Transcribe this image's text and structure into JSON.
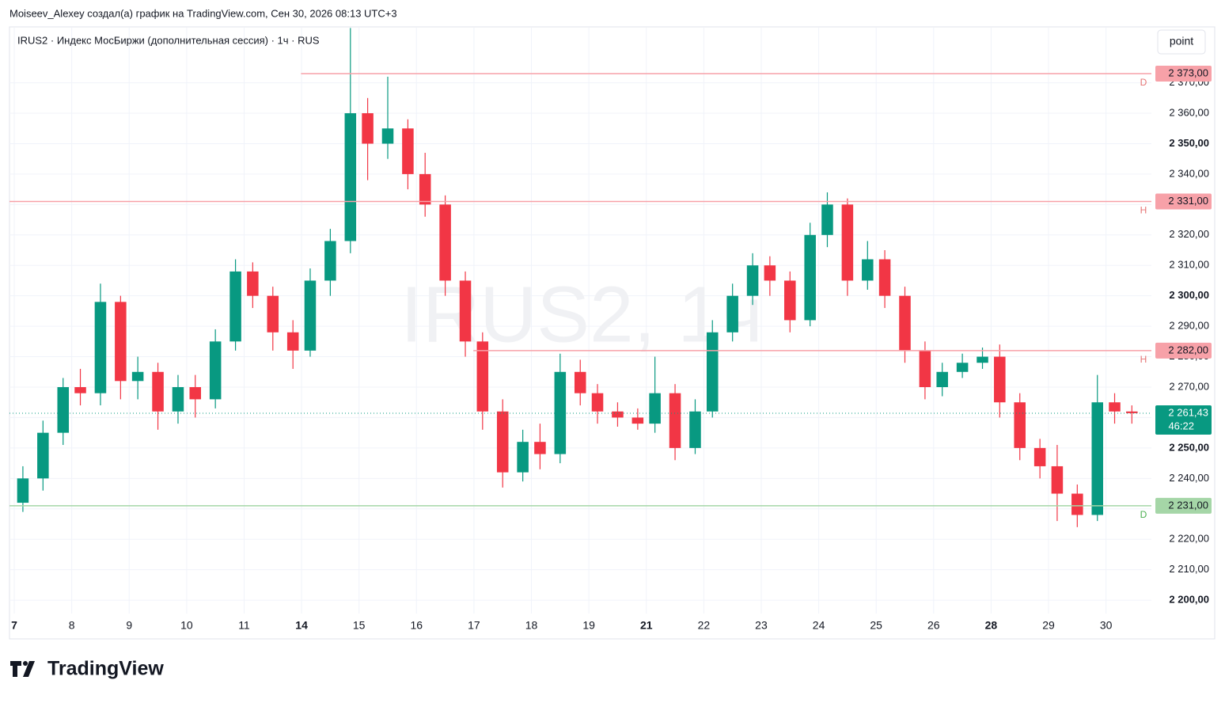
{
  "header": {
    "credit": "Moiseev_Alexey создал(а) график на TradingView.com, Сен 30, 2026 08:13 UTC+3",
    "button": "point",
    "logo": "TradingView"
  },
  "chart_data": {
    "type": "candlestick",
    "title": "IRUS2 · Индекс МосБиржи (дополнительная сессия) · 1ч · RUS",
    "watermark": "IRUS2, 1ч",
    "up_color": "#089981",
    "down_color": "#f23645",
    "x": [
      0.15,
      0.5,
      0.85,
      1.15,
      1.5,
      1.85,
      2.15,
      2.5,
      2.85,
      3.15,
      3.5,
      3.85,
      4.15,
      4.5,
      4.85,
      5.15,
      5.5,
      5.85,
      6.15,
      6.5,
      6.85,
      7.15,
      7.5,
      7.85,
      8.15,
      8.5,
      8.85,
      9.15,
      9.5,
      9.85,
      10.15,
      10.5,
      10.85,
      11.15,
      11.5,
      11.85,
      12.15,
      12.5,
      12.85,
      13.15,
      13.5,
      13.85,
      14.15,
      14.5,
      14.85,
      15.15,
      15.5,
      15.85,
      16.15,
      16.5,
      16.85,
      17.15,
      17.5,
      17.85,
      18.15,
      18.5,
      18.85,
      19.15,
      19.45
    ],
    "open": [
      2232,
      2240,
      2255,
      2270,
      2268,
      2298,
      2272,
      2275,
      2262,
      2270,
      2266,
      2285,
      2308,
      2300,
      2288,
      2282,
      2305,
      2318,
      2360,
      2350,
      2355,
      2340,
      2330,
      2305,
      2285,
      2262,
      2242,
      2252,
      2248,
      2275,
      2268,
      2262,
      2260,
      2258,
      2268,
      2250,
      2262,
      2288,
      2300,
      2310,
      2305,
      2292,
      2320,
      2330,
      2305,
      2312,
      2300,
      2282,
      2270,
      2275,
      2278,
      2280,
      2265,
      2250,
      2244,
      2235,
      2228,
      2265,
      2262
    ],
    "high": [
      2244,
      2259,
      2273,
      2276,
      2304,
      2300,
      2280,
      2278,
      2274,
      2274,
      2289,
      2312,
      2311,
      2303,
      2292,
      2309,
      2322,
      2388,
      2365,
      2372,
      2358,
      2347,
      2333,
      2308,
      2288,
      2266,
      2256,
      2258,
      2281,
      2279,
      2271,
      2265,
      2263,
      2280,
      2271,
      2266,
      2292,
      2304,
      2314,
      2313,
      2308,
      2324,
      2334,
      2332,
      2318,
      2315,
      2303,
      2285,
      2278,
      2281,
      2283,
      2284,
      2268,
      2253,
      2251,
      2238,
      2274,
      2268,
      2264
    ],
    "low": [
      2229,
      2236,
      2251,
      2264,
      2264,
      2266,
      2266,
      2256,
      2258,
      2260,
      2263,
      2282,
      2296,
      2282,
      2276,
      2280,
      2300,
      2314,
      2338,
      2345,
      2335,
      2326,
      2300,
      2280,
      2256,
      2237,
      2239,
      2243,
      2245,
      2264,
      2258,
      2257,
      2256,
      2255,
      2246,
      2248,
      2260,
      2285,
      2297,
      2300,
      2288,
      2290,
      2316,
      2300,
      2302,
      2296,
      2278,
      2266,
      2267,
      2273,
      2276,
      2260,
      2246,
      2240,
      2226,
      2224,
      2226,
      2258,
      2258
    ],
    "close": [
      2240,
      2255,
      2270,
      2268,
      2298,
      2272,
      2275,
      2262,
      2270,
      2266,
      2285,
      2308,
      2300,
      2288,
      2282,
      2305,
      2318,
      2360,
      2350,
      2355,
      2340,
      2330,
      2305,
      2285,
      2262,
      2242,
      2252,
      2248,
      2275,
      2268,
      2262,
      2260,
      2258,
      2268,
      2250,
      2262,
      2288,
      2300,
      2310,
      2305,
      2292,
      2320,
      2330,
      2305,
      2312,
      2300,
      2282,
      2270,
      2275,
      2278,
      2280,
      2265,
      2250,
      2244,
      2235,
      2228,
      2265,
      2262,
      2261.43
    ],
    "xlim": [
      -0.083,
      19.79
    ],
    "xticks": [
      {
        "value": 0,
        "label": "7",
        "bold": true
      },
      {
        "value": 1,
        "label": "8"
      },
      {
        "value": 2,
        "label": "9"
      },
      {
        "value": 3,
        "label": "10"
      },
      {
        "value": 4,
        "label": "11"
      },
      {
        "value": 5,
        "label": "14",
        "bold": true
      },
      {
        "value": 6,
        "label": "15"
      },
      {
        "value": 7,
        "label": "16"
      },
      {
        "value": 8,
        "label": "17"
      },
      {
        "value": 9,
        "label": "18"
      },
      {
        "value": 10,
        "label": "19"
      },
      {
        "value": 11,
        "label": "21",
        "bold": true
      },
      {
        "value": 12,
        "label": "22"
      },
      {
        "value": 13,
        "label": "23"
      },
      {
        "value": 14,
        "label": "24"
      },
      {
        "value": 15,
        "label": "25"
      },
      {
        "value": 16,
        "label": "26"
      },
      {
        "value": 17,
        "label": "28",
        "bold": true
      },
      {
        "value": 18,
        "label": "29"
      },
      {
        "value": 19,
        "label": "30"
      }
    ],
    "ylim": [
      2195.6,
      2388.1
    ],
    "yticks": [
      {
        "value": 2200,
        "label": "2 200,00"
      },
      {
        "value": 2210,
        "label": "2 210,00"
      },
      {
        "value": 2220,
        "label": "2 220,00"
      },
      {
        "value": 2230,
        "label": "2 230,00"
      },
      {
        "value": 2240,
        "label": "2 240,00"
      },
      {
        "value": 2250,
        "label": "2 250,00"
      },
      {
        "value": 2260,
        "label": "2 260,00"
      },
      {
        "value": 2270,
        "label": "2 270,00"
      },
      {
        "value": 2280,
        "label": "2 280,00"
      },
      {
        "value": 2290,
        "label": "2 290,00"
      },
      {
        "value": 2300,
        "label": "2 300,00"
      },
      {
        "value": 2310,
        "label": "2 310,00"
      },
      {
        "value": 2320,
        "label": "2 320,00"
      },
      {
        "value": 2330,
        "label": "2 330,00"
      },
      {
        "value": 2340,
        "label": "2 340,00"
      },
      {
        "value": 2350,
        "label": "2 350,00"
      },
      {
        "value": 2360,
        "label": "2 360,00"
      },
      {
        "value": 2370,
        "label": "2 370,00"
      }
    ],
    "grid": true,
    "levels": [
      {
        "value": 2373,
        "label": "2 373,00",
        "tag": "D",
        "color": "#f7a1a8",
        "from": 4.99
      },
      {
        "value": 2331,
        "label": "2 331,00",
        "tag": "H",
        "color": "#f7a1a8"
      },
      {
        "value": 2282,
        "label": "2 282,00",
        "tag": "H",
        "color": "#f7a1a8",
        "from": 7.99
      },
      {
        "value": 2231,
        "label": "2 231,00",
        "tag": "D",
        "color": "#a5d6a7"
      }
    ],
    "current": {
      "value": 2261.43,
      "label": "2 261,43",
      "timer": "46:22",
      "color": "#089981"
    }
  }
}
